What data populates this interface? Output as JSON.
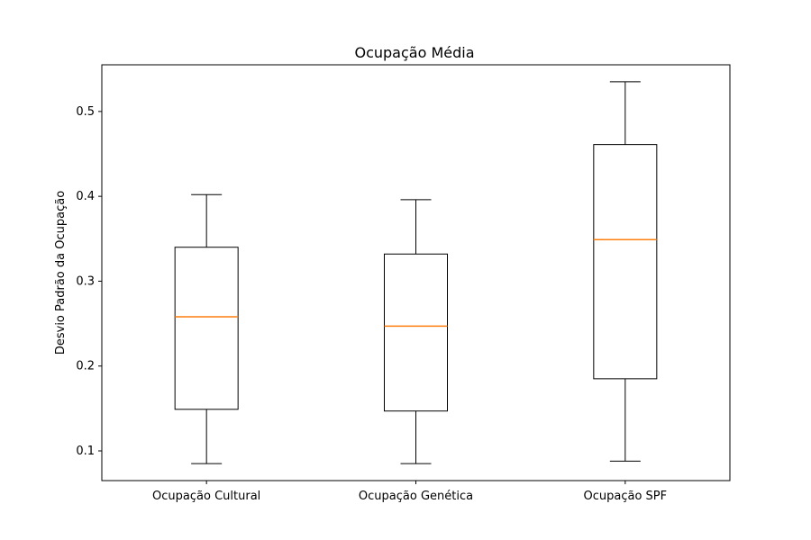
{
  "chart_data": {
    "type": "boxplot",
    "title": "Ocupação Média",
    "xlabel": "",
    "ylabel": "Desvio Padrão da Ocupação",
    "ylim": [
      0.065,
      0.555
    ],
    "yticks": [
      0.1,
      0.2,
      0.3,
      0.4,
      0.5
    ],
    "yticklabels": [
      "0.1",
      "0.2",
      "0.3",
      "0.4",
      "0.5"
    ],
    "grid": false,
    "categories": [
      "Ocupação Cultural",
      "Ocupação Genética",
      "Ocupação SPF"
    ],
    "boxes": [
      {
        "whisker_low": 0.085,
        "q1": 0.149,
        "median": 0.258,
        "q3": 0.34,
        "whisker_high": 0.402
      },
      {
        "whisker_low": 0.085,
        "q1": 0.147,
        "median": 0.247,
        "q3": 0.332,
        "whisker_high": 0.396
      },
      {
        "whisker_low": 0.088,
        "q1": 0.185,
        "median": 0.349,
        "q3": 0.461,
        "whisker_high": 0.535
      }
    ],
    "colors": {
      "box": "#000000",
      "median": "#ff7f0e"
    }
  }
}
